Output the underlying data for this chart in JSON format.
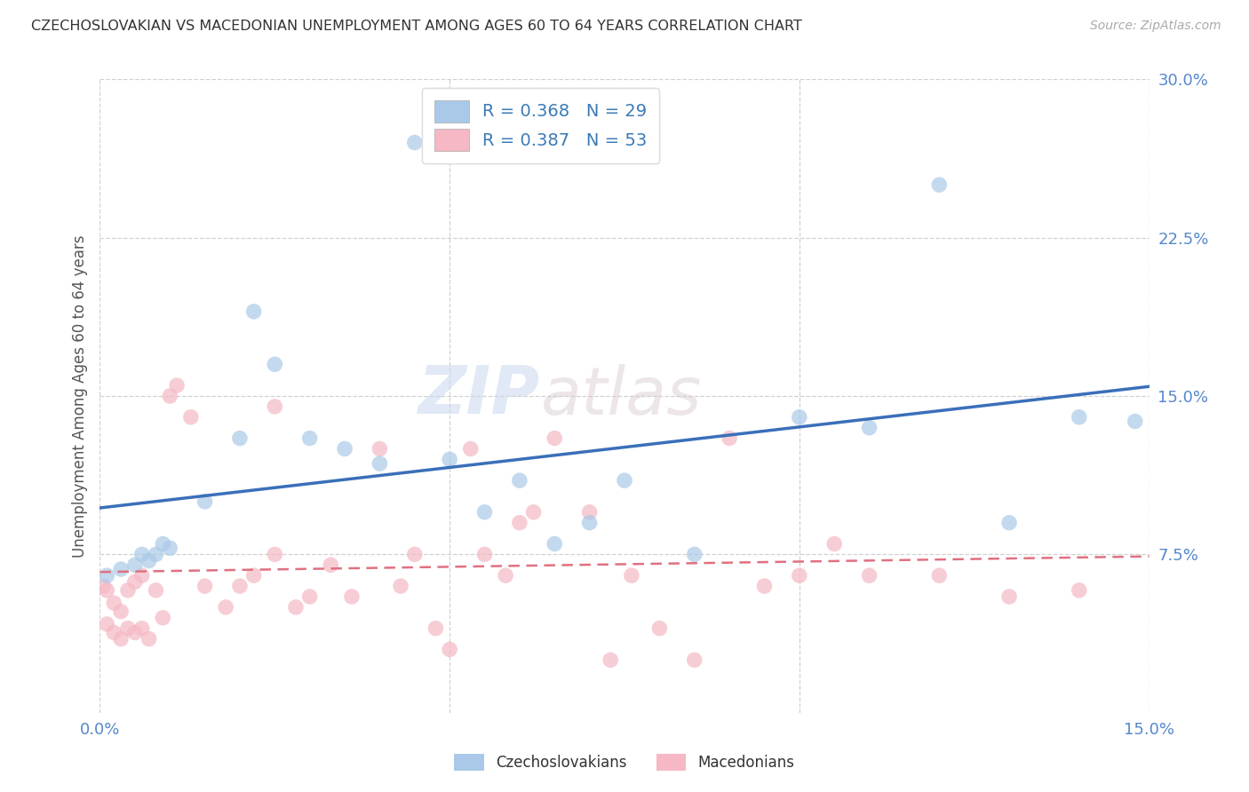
{
  "title": "CZECHOSLOVAKIAN VS MACEDONIAN UNEMPLOYMENT AMONG AGES 60 TO 64 YEARS CORRELATION CHART",
  "source": "Source: ZipAtlas.com",
  "ylabel": "Unemployment Among Ages 60 to 64 years",
  "xlim": [
    0.0,
    0.15
  ],
  "ylim": [
    0.0,
    0.3
  ],
  "xticks": [
    0.0,
    0.05,
    0.1,
    0.15
  ],
  "xtick_labels": [
    "0.0%",
    "",
    "",
    "15.0%"
  ],
  "yticks": [
    0.075,
    0.15,
    0.225,
    0.3
  ],
  "ytick_labels": [
    "7.5%",
    "15.0%",
    "22.5%",
    "30.0%"
  ],
  "legend_r1_label": "R = 0.368   N = 29",
  "legend_r2_label": "R = 0.387   N = 53",
  "blue_color": "#aac9e8",
  "pink_color": "#f5b8c4",
  "blue_line_color": "#3a6fba",
  "pink_line_color": "#e07080",
  "watermark_zip": "ZIP",
  "watermark_atlas": "atlas",
  "bottom_legend1": "Czechoslovakians",
  "bottom_legend2": "Macedonians",
  "blue_x": [
    0.001,
    0.003,
    0.005,
    0.006,
    0.007,
    0.008,
    0.009,
    0.01,
    0.015,
    0.02,
    0.022,
    0.025,
    0.03,
    0.035,
    0.04,
    0.045,
    0.05,
    0.055,
    0.06,
    0.065,
    0.07,
    0.075,
    0.085,
    0.1,
    0.11,
    0.12,
    0.13,
    0.14,
    0.148
  ],
  "blue_y": [
    0.065,
    0.068,
    0.07,
    0.075,
    0.072,
    0.075,
    0.08,
    0.078,
    0.1,
    0.13,
    0.19,
    0.165,
    0.13,
    0.125,
    0.118,
    0.27,
    0.12,
    0.095,
    0.11,
    0.08,
    0.09,
    0.11,
    0.075,
    0.14,
    0.135,
    0.25,
    0.09,
    0.14,
    0.138
  ],
  "pink_x": [
    0.0005,
    0.001,
    0.001,
    0.002,
    0.002,
    0.003,
    0.003,
    0.004,
    0.004,
    0.005,
    0.005,
    0.006,
    0.006,
    0.007,
    0.008,
    0.009,
    0.01,
    0.011,
    0.013,
    0.015,
    0.018,
    0.02,
    0.022,
    0.025,
    0.025,
    0.028,
    0.03,
    0.033,
    0.036,
    0.04,
    0.043,
    0.045,
    0.048,
    0.05,
    0.053,
    0.055,
    0.058,
    0.06,
    0.062,
    0.065,
    0.07,
    0.073,
    0.076,
    0.08,
    0.085,
    0.09,
    0.095,
    0.1,
    0.105,
    0.11,
    0.12,
    0.13,
    0.14
  ],
  "pink_y": [
    0.06,
    0.058,
    0.042,
    0.052,
    0.038,
    0.048,
    0.035,
    0.04,
    0.058,
    0.038,
    0.062,
    0.065,
    0.04,
    0.035,
    0.058,
    0.045,
    0.15,
    0.155,
    0.14,
    0.06,
    0.05,
    0.06,
    0.065,
    0.145,
    0.075,
    0.05,
    0.055,
    0.07,
    0.055,
    0.125,
    0.06,
    0.075,
    0.04,
    0.03,
    0.125,
    0.075,
    0.065,
    0.09,
    0.095,
    0.13,
    0.095,
    0.025,
    0.065,
    0.04,
    0.025,
    0.13,
    0.06,
    0.065,
    0.08,
    0.065,
    0.065,
    0.055,
    0.058
  ]
}
